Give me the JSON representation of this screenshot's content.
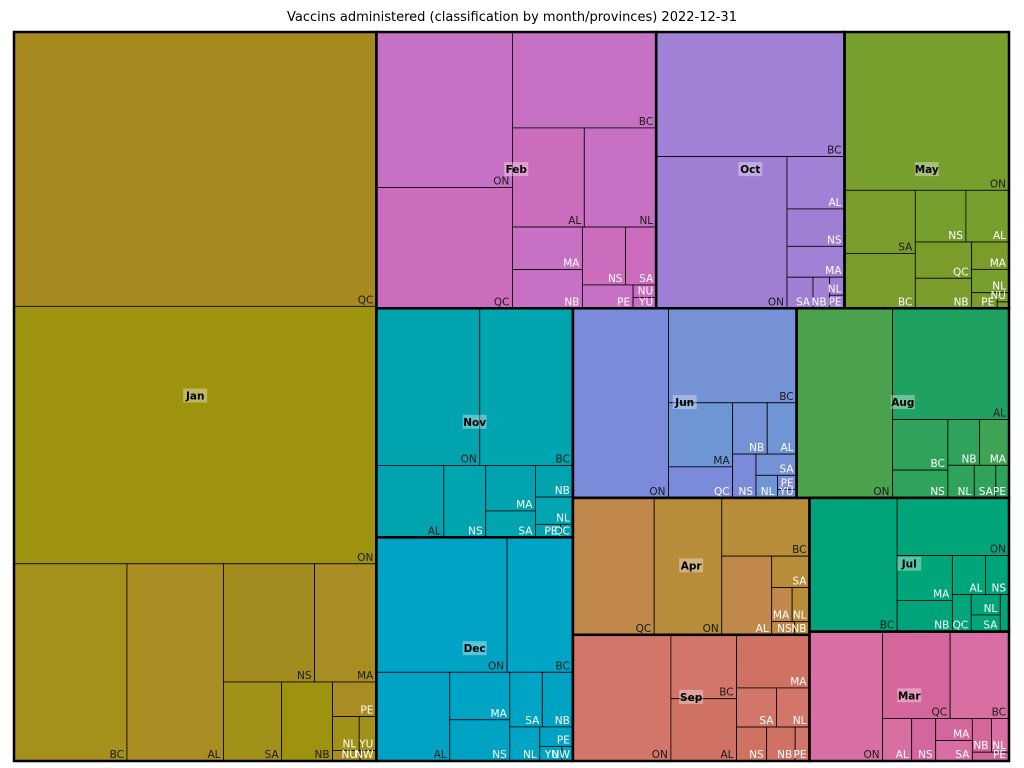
{
  "chart_data": {
    "type": "treemap",
    "title": "Vaccins administered (classification by month/provinces)  2022-12-31",
    "months": [
      {
        "name": "Jan",
        "color": "#a08a1e",
        "leaves": [
          {
            "label": "ON",
            "value": 8670,
            "color": "#9d930f"
          },
          {
            "label": "QC",
            "value": 9240,
            "color": "#a6891f"
          },
          {
            "label": "BC",
            "value": 2070,
            "color": "#a4901a"
          },
          {
            "label": "AL",
            "value": 1770,
            "color": "#a98c22"
          },
          {
            "label": "NS",
            "value": 1000,
            "color": "#a28c20"
          },
          {
            "label": "MA",
            "value": 679,
            "color": "#a98c22"
          },
          {
            "label": "SA",
            "value": 427,
            "color": "#a29118"
          },
          {
            "label": "NB",
            "value": 374,
            "color": "#9e930f"
          },
          {
            "label": "PE",
            "value": 141,
            "color": "#a98c22"
          },
          {
            "label": "NL",
            "value": 84,
            "color": "#a29118"
          },
          {
            "label": "YU",
            "value": 54,
            "color": "#a29118"
          },
          {
            "label": "NU",
            "value": 27,
            "color": "#a98c22"
          },
          {
            "label": "NW",
            "value": 16,
            "color": "#a29118"
          }
        ]
      },
      {
        "name": "Feb",
        "color": "#c671c4",
        "leaves": [
          {
            "label": "ON",
            "value": 1966,
            "color": "#c771c4"
          },
          {
            "label": "QC",
            "value": 1527,
            "color": "#cc6cbd"
          },
          {
            "label": "BC",
            "value": 1281,
            "color": "#c771c4"
          },
          {
            "label": "AL",
            "value": 662,
            "color": "#cc6cbd"
          },
          {
            "label": "NL",
            "value": 662,
            "color": "#c771c4"
          },
          {
            "label": "NS",
            "value": 232,
            "color": "#cc6cbd"
          },
          {
            "label": "MA",
            "value": 277,
            "color": "#c771c4"
          },
          {
            "label": "NB",
            "value": 251,
            "color": "#c771c4"
          },
          {
            "label": "SA",
            "value": 165,
            "color": "#cc6cbd"
          },
          {
            "label": "PE",
            "value": 110,
            "color": "#c771c4"
          },
          {
            "label": "NU",
            "value": 27,
            "color": "#cc6cbd"
          },
          {
            "label": "YU",
            "value": 23,
            "color": "#c771c4"
          }
        ]
      },
      {
        "name": "May",
        "color": "#7a9e2e",
        "leaves": [
          {
            "label": "ON",
            "value": 2420,
            "color": "#779f2e"
          },
          {
            "label": "BC",
            "value": 361,
            "color": "#7a9c2a"
          },
          {
            "label": "SA",
            "value": 415,
            "color": "#7a9c2a"
          },
          {
            "label": "NS",
            "value": 243,
            "color": "#779f2e"
          },
          {
            "label": "QC",
            "value": 190,
            "color": "#7a9c2a"
          },
          {
            "label": "AL",
            "value": 207,
            "color": "#779f2e"
          },
          {
            "label": "NB",
            "value": 157,
            "color": "#7a9c2a"
          },
          {
            "label": "MA",
            "value": 95,
            "color": "#7a9c2a"
          },
          {
            "label": "NL",
            "value": 81,
            "color": "#779f2e"
          },
          {
            "label": "PE",
            "value": 37,
            "color": "#7a9c2a"
          },
          {
            "label": "NU",
            "value": 10,
            "color": "#779f2e"
          },
          {
            "label": "YU",
            "value": 7,
            "color": "#7a9c2a"
          }
        ]
      },
      {
        "name": "Nov",
        "color": "#00a3ae",
        "leaves": [
          {
            "label": "ON",
            "value": 1510,
            "color": "#00a3ae"
          },
          {
            "label": "BC",
            "value": 1360,
            "color": "#00a5b0"
          },
          {
            "label": "AL",
            "value": 450,
            "color": "#00a3ae"
          },
          {
            "label": "NS",
            "value": 280,
            "color": "#00a5b0"
          },
          {
            "label": "MA",
            "value": 210,
            "color": "#00a3ae"
          },
          {
            "label": "SA",
            "value": 122,
            "color": "#00a5b0"
          },
          {
            "label": "NB",
            "value": 110,
            "color": "#00a3ae"
          },
          {
            "label": "NL",
            "value": 95,
            "color": "#00a5b0"
          },
          {
            "label": "PE",
            "value": 30,
            "color": "#00a3ae"
          },
          {
            "label": "QC",
            "value": 15,
            "color": "#00a5b0"
          }
        ]
      },
      {
        "name": "Aug",
        "color": "#2fa25b",
        "leaves": [
          {
            "label": "ON",
            "value": 1690,
            "color": "#4ba24e"
          },
          {
            "label": "AL",
            "value": 1205,
            "color": "#1fa162"
          },
          {
            "label": "BC",
            "value": 260,
            "color": "#2fa25b"
          },
          {
            "label": "NS",
            "value": 143,
            "color": "#2fa25b"
          },
          {
            "label": "NB",
            "value": 135,
            "color": "#2fa25b"
          },
          {
            "label": "MA",
            "value": 125,
            "color": "#3fa355"
          },
          {
            "label": "NL",
            "value": 80,
            "color": "#2fa25b"
          },
          {
            "label": "SA",
            "value": 65,
            "color": "#2fa25b"
          },
          {
            "label": "PE",
            "value": 40,
            "color": "#2fa25b"
          }
        ]
      },
      {
        "name": "Oct",
        "color": "#a181d5",
        "leaves": [
          {
            "label": "BC",
            "value": 2180,
            "color": "#a181d5"
          },
          {
            "label": "ON",
            "value": 1845,
            "color": "#9f7fd3"
          },
          {
            "label": "AL",
            "value": 280,
            "color": "#a181d5"
          },
          {
            "label": "NS",
            "value": 200,
            "color": "#9f7fd3"
          },
          {
            "label": "MA",
            "value": 165,
            "color": "#a181d5"
          },
          {
            "label": "SA",
            "value": 75,
            "color": "#9f7fd3"
          },
          {
            "label": "NB",
            "value": 48,
            "color": "#a181d5"
          },
          {
            "label": "NL",
            "value": 25,
            "color": "#9f7fd3"
          },
          {
            "label": "PE",
            "value": 18,
            "color": "#a181d5"
          }
        ]
      },
      {
        "name": "Dec",
        "color": "#00a3c4",
        "leaves": [
          {
            "label": "ON",
            "value": 1640,
            "color": "#00a3c4"
          },
          {
            "label": "BC",
            "value": 825,
            "color": "#00a5c6"
          },
          {
            "label": "AL",
            "value": 605,
            "color": "#00a3c4"
          },
          {
            "label": "MA",
            "value": 265,
            "color": "#00a5c6"
          },
          {
            "label": "NS",
            "value": 230,
            "color": "#00a3c4"
          },
          {
            "label": "SA",
            "value": 165,
            "color": "#00a5c6"
          },
          {
            "label": "NB",
            "value": 155,
            "color": "#00a3c4"
          },
          {
            "label": "NL",
            "value": 95,
            "color": "#00a5c6"
          },
          {
            "label": "PE",
            "value": 60,
            "color": "#00a3c4"
          },
          {
            "label": "YU",
            "value": 30,
            "color": "#00a5c6"
          },
          {
            "label": "NW",
            "value": 15,
            "color": "#00a3c4"
          }
        ]
      },
      {
        "name": "Mar",
        "color": "#d66fa2",
        "leaves": [
          {
            "label": "ON",
            "value": 880,
            "color": "#d76fa2"
          },
          {
            "label": "QC",
            "value": 545,
            "color": "#d3679b"
          },
          {
            "label": "BC",
            "value": 475,
            "color": "#d76fa2"
          },
          {
            "label": "NS",
            "value": 95,
            "color": "#d3679b"
          },
          {
            "label": "AL",
            "value": 115,
            "color": "#d76fa2"
          },
          {
            "label": "MA",
            "value": 75,
            "color": "#d3679b"
          },
          {
            "label": "SA",
            "value": 70,
            "color": "#d76fa2"
          },
          {
            "label": "NB",
            "value": 60,
            "color": "#d3679b"
          },
          {
            "label": "NL",
            "value": 55,
            "color": "#d76fa2"
          },
          {
            "label": "PE",
            "value": 30,
            "color": "#d3679b"
          }
        ]
      },
      {
        "name": "Jul",
        "color": "#00a67a",
        "leaves": [
          {
            "label": "ON",
            "value": 600,
            "color": "#00a67a"
          },
          {
            "label": "BC",
            "value": 1090,
            "color": "#00a37a"
          },
          {
            "label": "MA",
            "value": 230,
            "color": "#00a67a"
          },
          {
            "label": "NB",
            "value": 160,
            "color": "#00a37a"
          },
          {
            "label": "AL",
            "value": 120,
            "color": "#00a67a"
          },
          {
            "label": "NS",
            "value": 85,
            "color": "#00a37a"
          },
          {
            "label": "QC",
            "value": 65,
            "color": "#00a67a"
          },
          {
            "label": "NL",
            "value": 55,
            "color": "#00a37a"
          },
          {
            "label": "SA",
            "value": 45,
            "color": "#00a67a"
          },
          {
            "label": "PE",
            "value": 30,
            "color": "#00a37a"
          }
        ]
      },
      {
        "name": "Jun",
        "color": "#7b8cd8",
        "leaves": [
          {
            "label": "ON",
            "value": 1685,
            "color": "#7c8ada"
          },
          {
            "label": "BC",
            "value": 1125,
            "color": "#7592d6"
          },
          {
            "label": "MA",
            "value": 382,
            "color": "#6e96d4"
          },
          {
            "label": "QC",
            "value": 185,
            "color": "#7c8ada"
          },
          {
            "label": "NB",
            "value": 165,
            "color": "#7592d6"
          },
          {
            "label": "AL",
            "value": 140,
            "color": "#6e96d4"
          },
          {
            "label": "NS",
            "value": 95,
            "color": "#7c8ada"
          },
          {
            "label": "SA",
            "value": 80,
            "color": "#7592d6"
          },
          {
            "label": "NL",
            "value": 45,
            "color": "#6e96d4"
          },
          {
            "label": "PE",
            "value": 25,
            "color": "#7c8ada"
          },
          {
            "label": "YU",
            "value": 15,
            "color": "#7592d6"
          }
        ]
      },
      {
        "name": "Sep",
        "color": "#d2766a",
        "leaves": [
          {
            "label": "ON",
            "value": 1150,
            "color": "#d2766a"
          },
          {
            "label": "AL",
            "value": 380,
            "color": "#cf7264"
          },
          {
            "label": "BC",
            "value": 390,
            "color": "#d2766a"
          },
          {
            "label": "MA",
            "value": 360,
            "color": "#cf7264"
          },
          {
            "label": "SA",
            "value": 145,
            "color": "#d2766a"
          },
          {
            "label": "NS",
            "value": 95,
            "color": "#cf7264"
          },
          {
            "label": "NL",
            "value": 120,
            "color": "#d2766a"
          },
          {
            "label": "NB",
            "value": 90,
            "color": "#cf7264"
          },
          {
            "label": "PE",
            "value": 45,
            "color": "#d2766a"
          }
        ]
      },
      {
        "name": "Apr",
        "color": "#bb8a40",
        "leaves": [
          {
            "label": "ON",
            "value": 860,
            "color": "#b88d3a"
          },
          {
            "label": "QC",
            "value": 1035,
            "color": "#c0884b"
          },
          {
            "label": "BC",
            "value": 475,
            "color": "#b88d3a"
          },
          {
            "label": "AL",
            "value": 365,
            "color": "#c0884b"
          },
          {
            "label": "SA",
            "value": 110,
            "color": "#b88d3a"
          },
          {
            "label": "MA",
            "value": 65,
            "color": "#c0884b"
          },
          {
            "label": "NL",
            "value": 55,
            "color": "#b88d3a"
          },
          {
            "label": "NS",
            "value": 28,
            "color": "#c0884b"
          },
          {
            "label": "NB",
            "value": 18,
            "color": "#b88d3a"
          }
        ]
      }
    ]
  }
}
